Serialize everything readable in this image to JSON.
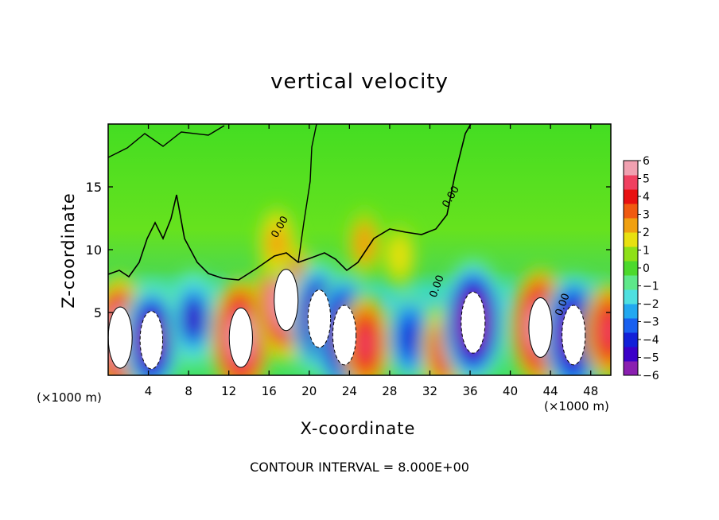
{
  "chart_data": {
    "type": "heatmap",
    "title": "vertical velocity",
    "xlabel": "X-coordinate",
    "ylabel": "Z-coordinate",
    "x_unit": "(×1000 m)",
    "xlim": [
      0,
      50
    ],
    "ylim": [
      0,
      20
    ],
    "x_ticks": [
      "4",
      "8",
      "12",
      "16",
      "20",
      "24",
      "28",
      "32",
      "36",
      "40",
      "44",
      "48"
    ],
    "y_ticks": [
      "5",
      "10",
      "15"
    ],
    "x_tick_values": [
      4,
      8,
      12,
      16,
      20,
      24,
      28,
      32,
      36,
      40,
      44,
      48
    ],
    "y_tick_values": [
      5,
      10,
      15
    ],
    "colorbar": {
      "ticks": [
        "6",
        "5",
        "4",
        "3",
        "2",
        "1",
        "0",
        "−1",
        "−2",
        "−3",
        "−4",
        "−5",
        "−6"
      ],
      "range": [
        -6,
        6
      ],
      "colors": [
        "#8a1fb0",
        "#3b00c8",
        "#1220d8",
        "#1860f0",
        "#22a8f0",
        "#4fe0e0",
        "#5ee88a",
        "#4cd92c",
        "#8ee018",
        "#e8e010",
        "#f0a010",
        "#f05a10",
        "#e81010",
        "#f04060",
        "#f0a0b0"
      ]
    },
    "contour_label": "0.00",
    "contour_interval_text": "CONTOUR INTERVAL = 8.000E+00",
    "features": [
      {
        "x": 1.2,
        "z": 3.0,
        "w": 7.5
      },
      {
        "x": 4.3,
        "z": 2.8,
        "w": -6.5
      },
      {
        "x": 8.5,
        "z": 4.5,
        "w": -4.5
      },
      {
        "x": 13.2,
        "z": 3.0,
        "w": 7.0
      },
      {
        "x": 17.7,
        "z": 6.0,
        "w": 7.5
      },
      {
        "x": 21.0,
        "z": 4.5,
        "w": -6.5
      },
      {
        "x": 23.5,
        "z": 3.2,
        "w": -7.0
      },
      {
        "x": 25.6,
        "z": 2.5,
        "w": 5.0
      },
      {
        "x": 30.0,
        "z": 3.0,
        "w": -4.0
      },
      {
        "x": 33.5,
        "z": 2.0,
        "w": 4.5
      },
      {
        "x": 36.3,
        "z": 4.2,
        "w": -7.5
      },
      {
        "x": 43.0,
        "z": 3.8,
        "w": 7.0
      },
      {
        "x": 46.3,
        "z": 3.2,
        "w": -7.0
      },
      {
        "x": 49.8,
        "z": 3.5,
        "w": 5.0
      },
      {
        "x": 25.5,
        "z": 10.5,
        "w": 2.0
      },
      {
        "x": 29.0,
        "z": 9.5,
        "w": 1.5
      },
      {
        "x": 16.8,
        "z": 10.5,
        "w": 2.5
      }
    ]
  }
}
